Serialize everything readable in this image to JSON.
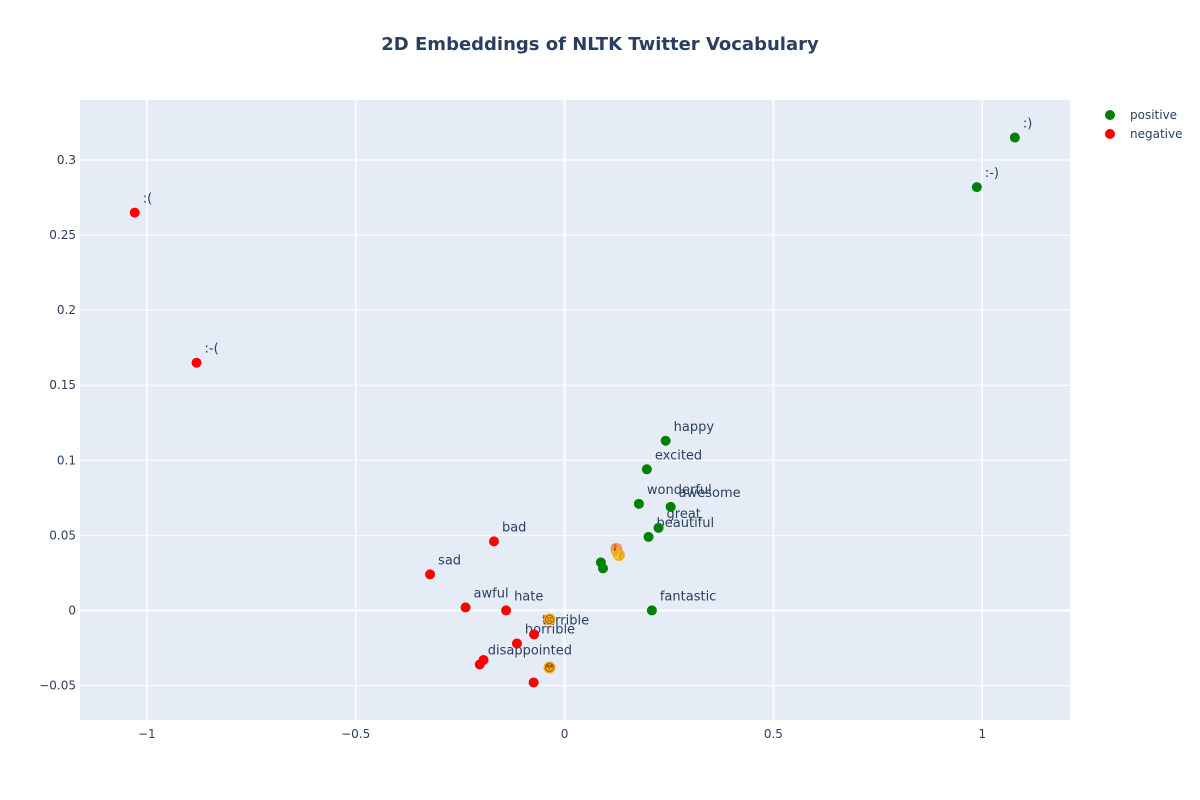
{
  "chart_data": {
    "type": "scatter",
    "title": "2D Embeddings of NLTK Twitter Vocabulary",
    "xlabel": "",
    "ylabel": "",
    "xlim": [
      -1.16,
      1.21
    ],
    "ylim": [
      -0.073,
      0.34
    ],
    "x_ticks": [
      -1,
      -0.5,
      0,
      0.5,
      1
    ],
    "x_tick_labels": [
      "−1",
      "−0.5",
      "0",
      "0.5",
      "1"
    ],
    "y_ticks": [
      -0.05,
      0,
      0.05,
      0.1,
      0.15,
      0.2,
      0.25,
      0.3
    ],
    "y_tick_labels": [
      "−0.05",
      "0",
      "0.05",
      "0.1",
      "0.15",
      "0.2",
      "0.25",
      "0.3"
    ],
    "grid": true,
    "legend_position": "top-right",
    "colors": {
      "positive": "#008000",
      "negative": "#ff0000",
      "emoji": "#f5a623",
      "plot_bg": "#e5ecf6"
    },
    "series": [
      {
        "name": "positive",
        "color": "#008000",
        "points": [
          {
            "x": 1.078,
            "y": 0.315,
            "label": ":)"
          },
          {
            "x": 0.987,
            "y": 0.282,
            "label": ":-)"
          },
          {
            "x": 0.242,
            "y": 0.113,
            "label": "happy"
          },
          {
            "x": 0.197,
            "y": 0.094,
            "label": "excited"
          },
          {
            "x": 0.178,
            "y": 0.071,
            "label": "wonderful"
          },
          {
            "x": 0.254,
            "y": 0.069,
            "label": "awesome"
          },
          {
            "x": 0.225,
            "y": 0.055,
            "label": "great"
          },
          {
            "x": 0.201,
            "y": 0.049,
            "label": "beautiful"
          },
          {
            "x": 0.087,
            "y": 0.032,
            "label": ""
          },
          {
            "x": 0.092,
            "y": 0.028,
            "label": ""
          },
          {
            "x": 0.209,
            "y": 0.0,
            "label": "fantastic"
          }
        ]
      },
      {
        "name": "negative",
        "color": "#ff0000",
        "points": [
          {
            "x": -1.029,
            "y": 0.265,
            "label": ":("
          },
          {
            "x": -0.881,
            "y": 0.165,
            "label": ":-("
          },
          {
            "x": -0.169,
            "y": 0.046,
            "label": "bad"
          },
          {
            "x": -0.322,
            "y": 0.024,
            "label": "sad"
          },
          {
            "x": -0.237,
            "y": 0.002,
            "label": "awful"
          },
          {
            "x": -0.14,
            "y": 0.0,
            "label": "hate"
          },
          {
            "x": -0.073,
            "y": -0.016,
            "label": "terrible"
          },
          {
            "x": -0.114,
            "y": -0.022,
            "label": "horrible"
          },
          {
            "x": -0.194,
            "y": -0.033,
            "label": ""
          },
          {
            "x": -0.203,
            "y": -0.036,
            "label": "disappointed"
          },
          {
            "x": -0.074,
            "y": -0.048,
            "label": ""
          }
        ]
      }
    ],
    "emoji_points": [
      {
        "x": -0.036,
        "y": -0.006,
        "face": "😣"
      },
      {
        "x": -0.036,
        "y": -0.038,
        "face": "😳"
      },
      {
        "x": 0.124,
        "y": 0.041,
        "face": "🎉"
      },
      {
        "x": 0.13,
        "y": 0.037,
        "face": "👍"
      }
    ]
  }
}
